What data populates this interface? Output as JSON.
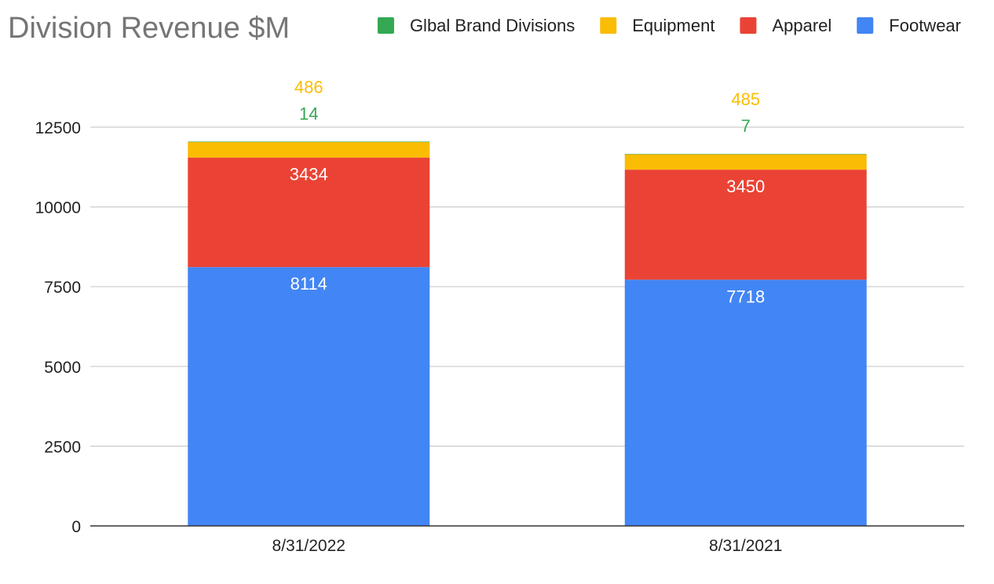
{
  "chart_data": {
    "type": "bar",
    "stacked": true,
    "title": "Division Revenue $M",
    "xlabel": "",
    "ylabel": "",
    "categories": [
      "8/31/2022",
      "8/31/2021"
    ],
    "ylim": [
      0,
      12500
    ],
    "yticks": [
      0,
      2500,
      5000,
      7500,
      10000,
      12500
    ],
    "grid": true,
    "legend_position": "top-right",
    "series": [
      {
        "name": "Footwear",
        "color": "#4285F4",
        "values": [
          8114,
          7718
        ],
        "label_color": "#ffffff",
        "label_position": "inside-top"
      },
      {
        "name": "Apparel",
        "color": "#EA4335",
        "values": [
          3434,
          3450
        ],
        "label_color": "#ffffff",
        "label_position": "inside-top"
      },
      {
        "name": "Equipment",
        "color": "#FBBC04",
        "values": [
          486,
          485
        ],
        "label_color": "#FBBC04",
        "label_position": "above"
      },
      {
        "name": "Glbal Brand Divisions",
        "color": "#34A853",
        "values": [
          14,
          7
        ],
        "label_color": "#34A853",
        "label_position": "above"
      }
    ],
    "legend_order": [
      "Glbal Brand Divisions",
      "Equipment",
      "Apparel",
      "Footwear"
    ]
  }
}
